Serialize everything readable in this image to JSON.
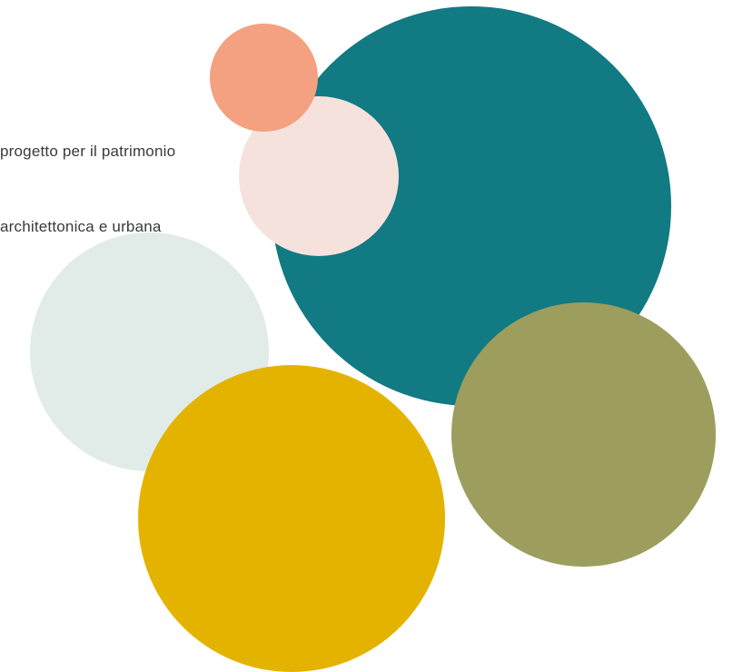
{
  "text": {
    "line1": "progetto per il patrimonio",
    "line2": "architettonica e urbana"
  },
  "circles": [
    {
      "id": "c-teal",
      "name": "teal-circle",
      "color": "#117A82"
    },
    {
      "id": "c-mint",
      "name": "mint-circle",
      "color": "#E1ECE8"
    },
    {
      "id": "c-olive",
      "name": "olive-circle",
      "color": "#9D9E5E"
    },
    {
      "id": "c-yellow",
      "name": "yellow-circle",
      "color": "#E4B300"
    },
    {
      "id": "c-pink",
      "name": "pink-circle",
      "color": "#F6E2DD"
    },
    {
      "id": "c-salmon",
      "name": "salmon-circle",
      "color": "#F3A180"
    }
  ]
}
